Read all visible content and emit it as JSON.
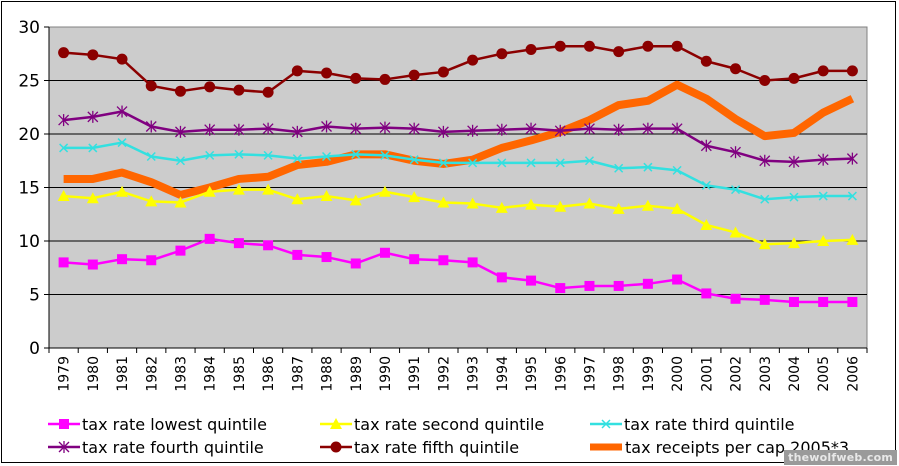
{
  "chart_data": {
    "type": "line",
    "title": "",
    "xlabel": "",
    "ylabel": "",
    "ylim": [
      0,
      30
    ],
    "yticks": [
      0,
      5,
      10,
      15,
      20,
      25,
      30
    ],
    "grid": "horizontal",
    "plot_background": "#cccccc",
    "legend_position": "bottom",
    "categories": [
      "1979",
      "1980",
      "1981",
      "1982",
      "1983",
      "1984",
      "1985",
      "1986",
      "1987",
      "1988",
      "1989",
      "1990",
      "1991",
      "1992",
      "1993",
      "1994",
      "1995",
      "1996",
      "1997",
      "1998",
      "1999",
      "2000",
      "2001",
      "2002",
      "2003",
      "2004",
      "2005",
      "2006"
    ],
    "series": [
      {
        "name": "tax rate lowest quintile",
        "color": "#ff00ff",
        "marker": "square",
        "values": [
          8.0,
          7.8,
          8.3,
          8.2,
          9.1,
          10.2,
          9.8,
          9.6,
          8.7,
          8.5,
          7.9,
          8.9,
          8.3,
          8.2,
          8.0,
          6.6,
          6.3,
          5.6,
          5.8,
          5.8,
          6.0,
          6.4,
          5.1,
          4.6,
          4.5,
          4.3,
          4.3,
          4.3
        ]
      },
      {
        "name": "tax rate second quintile",
        "color": "#ffff00",
        "marker": "triangle",
        "values": [
          14.2,
          14.0,
          14.6,
          13.7,
          13.6,
          14.6,
          14.8,
          14.8,
          13.9,
          14.2,
          13.8,
          14.6,
          14.1,
          13.6,
          13.5,
          13.1,
          13.4,
          13.2,
          13.5,
          13.0,
          13.3,
          13.0,
          11.5,
          10.8,
          9.7,
          9.8,
          10.0,
          10.1
        ]
      },
      {
        "name": "tax rate third quintile",
        "color": "#33e0e0",
        "marker": "x",
        "values": [
          18.7,
          18.7,
          19.2,
          17.9,
          17.5,
          18.0,
          18.1,
          18.0,
          17.7,
          17.9,
          18.1,
          18.0,
          17.6,
          17.3,
          17.3,
          17.3,
          17.3,
          17.3,
          17.5,
          16.8,
          16.9,
          16.6,
          15.2,
          14.8,
          13.9,
          14.1,
          14.2,
          14.2
        ]
      },
      {
        "name": "tax rate fourth quintile",
        "color": "#800080",
        "marker": "star",
        "values": [
          21.3,
          21.6,
          22.1,
          20.7,
          20.2,
          20.4,
          20.4,
          20.5,
          20.2,
          20.7,
          20.5,
          20.6,
          20.5,
          20.2,
          20.3,
          20.4,
          20.5,
          20.3,
          20.5,
          20.4,
          20.5,
          20.5,
          18.9,
          18.3,
          17.5,
          17.4,
          17.6,
          17.7
        ]
      },
      {
        "name": "tax rate fifth quintile",
        "color": "#8b0000",
        "marker": "circle",
        "values": [
          27.6,
          27.4,
          27.0,
          24.5,
          24.0,
          24.4,
          24.1,
          23.9,
          25.9,
          25.7,
          25.2,
          25.1,
          25.5,
          25.8,
          26.9,
          27.5,
          27.9,
          28.2,
          28.2,
          27.7,
          28.2,
          28.2,
          26.8,
          26.1,
          25.0,
          25.2,
          25.9,
          25.9
        ]
      },
      {
        "name": "tax receipts per cap 2005*3",
        "color": "#ff6600",
        "marker": "none",
        "thick": true,
        "values": [
          15.8,
          15.8,
          16.4,
          15.5,
          14.3,
          15.0,
          15.8,
          16.0,
          17.1,
          17.4,
          18.1,
          18.1,
          17.5,
          17.2,
          17.6,
          18.7,
          19.4,
          20.2,
          21.3,
          22.7,
          23.1,
          24.6,
          23.3,
          21.4,
          19.8,
          20.1,
          22.0,
          23.3
        ]
      }
    ],
    "legend_order": [
      0,
      1,
      2,
      3,
      4,
      5
    ]
  },
  "watermark": "thewolfweb.com"
}
